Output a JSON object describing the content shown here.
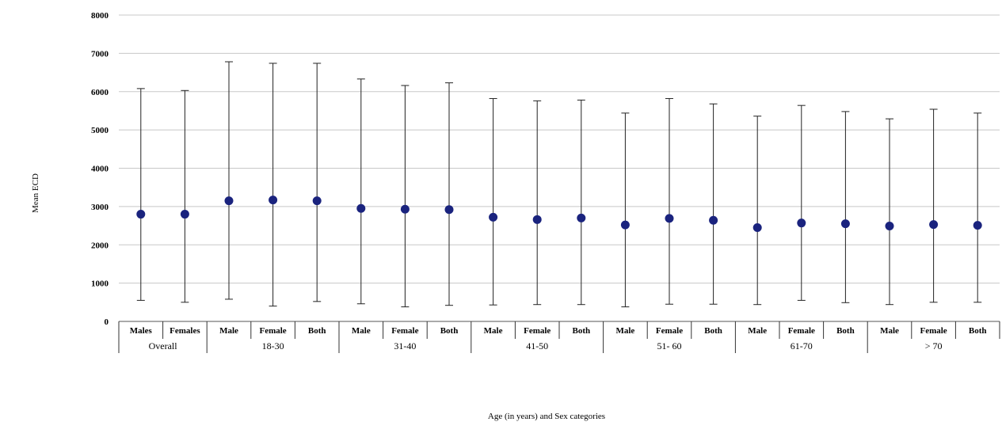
{
  "chart_data": {
    "type": "scatter",
    "title": "",
    "xlabel": "Age (in years) and Sex categories",
    "ylabel": "Mean ECD",
    "ylim": [
      0,
      8000
    ],
    "yticks": [
      0,
      1000,
      2000,
      3000,
      4000,
      5000,
      6000,
      7000,
      8000
    ],
    "grid": "horizontal",
    "marker_color": "#1a237e",
    "groups": [
      {
        "label": "Overall",
        "categories": [
          "Males",
          "Females"
        ]
      },
      {
        "label": "18-30",
        "categories": [
          "Male",
          "Female",
          "Both"
        ]
      },
      {
        "label": "31-40",
        "categories": [
          "Male",
          "Female",
          "Both"
        ]
      },
      {
        "label": "41-50",
        "categories": [
          "Male",
          "Female",
          "Both"
        ]
      },
      {
        "label": "51- 60",
        "categories": [
          "Male",
          "Female",
          "Both"
        ]
      },
      {
        "label": "61-70",
        "categories": [
          "Male",
          "Female",
          "Both"
        ]
      },
      {
        "label": "> 70",
        "categories": [
          "Male",
          "Female",
          "Both"
        ]
      }
    ],
    "points": [
      {
        "mean": 2800,
        "low": 550,
        "high": 6080
      },
      {
        "mean": 2800,
        "low": 500,
        "high": 6030
      },
      {
        "mean": 3150,
        "low": 580,
        "high": 6780
      },
      {
        "mean": 3170,
        "low": 400,
        "high": 6740
      },
      {
        "mean": 3150,
        "low": 520,
        "high": 6740
      },
      {
        "mean": 2950,
        "low": 460,
        "high": 6330
      },
      {
        "mean": 2930,
        "low": 380,
        "high": 6160
      },
      {
        "mean": 2920,
        "low": 420,
        "high": 6230
      },
      {
        "mean": 2720,
        "low": 430,
        "high": 5820
      },
      {
        "mean": 2660,
        "low": 440,
        "high": 5760
      },
      {
        "mean": 2700,
        "low": 440,
        "high": 5780
      },
      {
        "mean": 2520,
        "low": 380,
        "high": 5440
      },
      {
        "mean": 2690,
        "low": 450,
        "high": 5820
      },
      {
        "mean": 2640,
        "low": 450,
        "high": 5680
      },
      {
        "mean": 2450,
        "low": 440,
        "high": 5360
      },
      {
        "mean": 2570,
        "low": 550,
        "high": 5640
      },
      {
        "mean": 2550,
        "low": 490,
        "high": 5480
      },
      {
        "mean": 2490,
        "low": 440,
        "high": 5290
      },
      {
        "mean": 2530,
        "low": 500,
        "high": 5540
      },
      {
        "mean": 2510,
        "low": 500,
        "high": 5440
      }
    ]
  }
}
